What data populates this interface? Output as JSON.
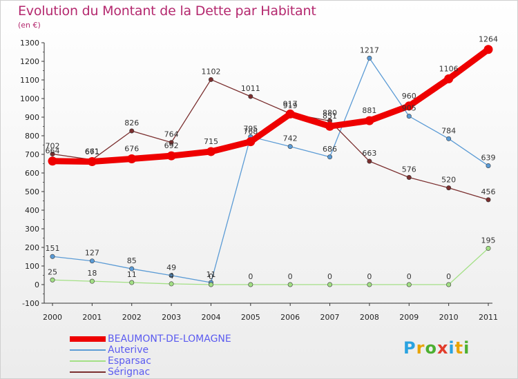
{
  "chart_data": {
    "type": "line",
    "title": "Evolution du Montant de la Dette par Habitant",
    "subtitle": "(en €)",
    "xlabel": "",
    "ylabel": "",
    "categories": [
      "2000",
      "2001",
      "2002",
      "2003",
      "2004",
      "2005",
      "2006",
      "2007",
      "2008",
      "2009",
      "2010",
      "2011"
    ],
    "ylim": [
      -100,
      1300
    ],
    "yticks": [
      -100,
      0,
      100,
      200,
      300,
      400,
      500,
      600,
      700,
      800,
      900,
      1000,
      1100,
      1200,
      1300
    ],
    "grid": false,
    "legend_position": "bottom-left",
    "series": [
      {
        "name": "BEAUMONT-DE-LOMAGNE",
        "color": "#ee0000",
        "values": [
          664,
          661,
          676,
          692,
          715,
          768,
          917,
          851,
          881,
          960,
          1106,
          1264
        ]
      },
      {
        "name": "Auterive",
        "color": "#5b9bd5",
        "values": [
          151,
          127,
          85,
          49,
          11,
          795,
          742,
          686,
          1217,
          905,
          784,
          639
        ]
      },
      {
        "name": "Esparsac",
        "color": "#a3e085",
        "values": [
          25,
          18,
          11,
          4,
          0,
          0,
          0,
          0,
          0,
          0,
          0,
          195
        ]
      },
      {
        "name": "Sérignac",
        "color": "#7a2e2e",
        "values": [
          702,
          671,
          826,
          764,
          1102,
          1011,
          919,
          880,
          663,
          576,
          520,
          456
        ]
      }
    ]
  },
  "logo": {
    "letters": [
      "P",
      "r",
      "o",
      "x",
      "i",
      "t",
      "i"
    ],
    "colors": [
      "#2aa3e0",
      "#e8a400",
      "#4caf30",
      "#e23c2b",
      "#2aa3e0",
      "#e8a400",
      "#4caf30"
    ]
  }
}
